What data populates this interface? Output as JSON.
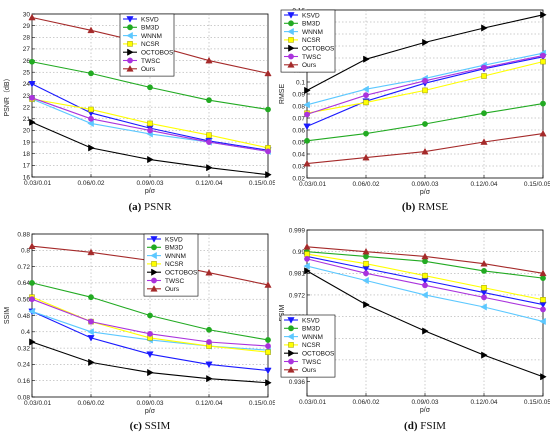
{
  "chart_data": [
    {
      "id": "psnr",
      "type": "line",
      "caption_letter": "(a)",
      "caption_text": "PSNR",
      "ylabel": "PSNR（dB）",
      "xlabel": "p/σ",
      "categories": [
        "0.03/0.01",
        "0.06/0.02",
        "0.09/0.03",
        "0.12/0.04",
        "0.15/0.05"
      ],
      "ylim": [
        16,
        30
      ],
      "yticks": [
        "16",
        "17",
        "18",
        "19",
        "20",
        "21",
        "22",
        "23",
        "24",
        "25",
        "26",
        "27",
        "28",
        "29",
        "30"
      ],
      "grid": true,
      "legend": "top-center",
      "series": [
        {
          "name": "KSVD",
          "color": "#1a1aff",
          "marker": "tri-down",
          "values": [
            24.0,
            21.5,
            20.2,
            19.1,
            18.3
          ]
        },
        {
          "name": "BM3D",
          "color": "#22aa22",
          "marker": "circle",
          "values": [
            25.9,
            24.9,
            23.7,
            22.6,
            21.8
          ]
        },
        {
          "name": "WNNM",
          "color": "#5cc8ff",
          "marker": "tri-left",
          "values": [
            22.7,
            20.6,
            19.7,
            19.0,
            18.2
          ]
        },
        {
          "name": "NCSR",
          "color": "#ffff00",
          "marker": "square",
          "values": [
            22.7,
            21.8,
            20.6,
            19.6,
            18.5
          ]
        },
        {
          "name": "OCTOBOS",
          "color": "#000000",
          "marker": "tri-right",
          "values": [
            20.7,
            18.5,
            17.5,
            16.8,
            16.2
          ]
        },
        {
          "name": "TWSC",
          "color": "#aa33dd",
          "marker": "circle",
          "values": [
            22.8,
            21.0,
            20.0,
            19.0,
            18.2
          ]
        },
        {
          "name": "Ours",
          "color": "#a52a2a",
          "marker": "tri-up",
          "values": [
            29.7,
            28.6,
            27.4,
            26.0,
            24.9
          ]
        }
      ]
    },
    {
      "id": "rmse",
      "type": "line",
      "caption_letter": "(b)",
      "caption_text": "RMSE",
      "ylabel": "RMSE",
      "xlabel": "p/σ",
      "categories": [
        "0.03/0.01",
        "0.06/0.02",
        "0.09/0.03",
        "0.12/0.04",
        "0.15/0.05"
      ],
      "ylim": [
        0.02,
        0.16
      ],
      "yticks": [
        "0.02",
        "0.03",
        "0.04",
        "0.05",
        "0.06",
        "0.07",
        "0.08",
        "0.09",
        "0.1",
        "0.11",
        "0.12",
        "0.13",
        "0.14",
        "0.15",
        "0.16"
      ],
      "grid": true,
      "legend": "top-left",
      "series": [
        {
          "name": "KSVD",
          "color": "#1a1aff",
          "marker": "tri-down",
          "values": [
            0.063,
            0.084,
            0.099,
            0.111,
            0.121
          ]
        },
        {
          "name": "BM3D",
          "color": "#22aa22",
          "marker": "circle",
          "values": [
            0.051,
            0.057,
            0.065,
            0.074,
            0.082
          ]
        },
        {
          "name": "WNNM",
          "color": "#5cc8ff",
          "marker": "tri-left",
          "values": [
            0.081,
            0.094,
            0.103,
            0.114,
            0.124
          ]
        },
        {
          "name": "NCSR",
          "color": "#ffff00",
          "marker": "square",
          "values": [
            0.074,
            0.083,
            0.093,
            0.105,
            0.117
          ]
        },
        {
          "name": "OCTOBOS",
          "color": "#000000",
          "marker": "tri-right",
          "values": [
            0.093,
            0.119,
            0.133,
            0.145,
            0.156
          ]
        },
        {
          "name": "TWSC",
          "color": "#aa33dd",
          "marker": "circle",
          "values": [
            0.073,
            0.089,
            0.101,
            0.112,
            0.122
          ]
        },
        {
          "name": "Ours",
          "color": "#a52a2a",
          "marker": "tri-up",
          "values": [
            0.032,
            0.037,
            0.042,
            0.05,
            0.057
          ]
        }
      ]
    },
    {
      "id": "ssim",
      "type": "line",
      "caption_letter": "(c)",
      "caption_text": "SSIM",
      "ylabel": "SSIM",
      "xlabel": "p/σ",
      "categories": [
        "0.03/0.01",
        "0.06/0.02",
        "0.09/0.03",
        "0.12/0.04",
        "0.15/0.05"
      ],
      "ylim": [
        0.08,
        0.88
      ],
      "yticks": [
        "0.08",
        "0.16",
        "0.24",
        "0.32",
        "0.4",
        "0.48",
        "0.56",
        "0.64",
        "0.72",
        "0.8",
        "0.88"
      ],
      "grid": true,
      "legend": "top-right",
      "series": [
        {
          "name": "KSVD",
          "color": "#1a1aff",
          "marker": "tri-down",
          "values": [
            0.5,
            0.37,
            0.29,
            0.24,
            0.21
          ]
        },
        {
          "name": "BM3D",
          "color": "#22aa22",
          "marker": "circle",
          "values": [
            0.64,
            0.57,
            0.48,
            0.41,
            0.36
          ]
        },
        {
          "name": "WNNM",
          "color": "#5cc8ff",
          "marker": "tri-left",
          "values": [
            0.5,
            0.4,
            0.36,
            0.33,
            0.31
          ]
        },
        {
          "name": "NCSR",
          "color": "#ffff00",
          "marker": "square",
          "values": [
            0.57,
            0.45,
            0.37,
            0.33,
            0.3
          ]
        },
        {
          "name": "OCTOBOS",
          "color": "#000000",
          "marker": "tri-right",
          "values": [
            0.35,
            0.25,
            0.2,
            0.17,
            0.15
          ]
        },
        {
          "name": "TWSC",
          "color": "#aa33dd",
          "marker": "circle",
          "values": [
            0.56,
            0.45,
            0.39,
            0.35,
            0.33
          ]
        },
        {
          "name": "Ours",
          "color": "#a52a2a",
          "marker": "tri-up",
          "values": [
            0.82,
            0.79,
            0.75,
            0.69,
            0.63
          ]
        }
      ]
    },
    {
      "id": "fsim",
      "type": "line",
      "caption_letter": "(d)",
      "caption_text": "FSIM",
      "ylabel": "FSIM",
      "xlabel": "p/σ",
      "categories": [
        "0.03/0.01",
        "0.06/0.02",
        "0.09/0.03",
        "0.12/0.04",
        "0.15/0.05"
      ],
      "ylim": [
        0.93,
        0.999
      ],
      "yticks": [
        "0.936",
        "0.945",
        "0.954",
        "0.963",
        "0.972",
        "0.981",
        "0.99",
        "0.999"
      ],
      "grid": true,
      "legend": "bottom-left",
      "series": [
        {
          "name": "KSVD",
          "color": "#1a1aff",
          "marker": "tri-down",
          "values": [
            0.988,
            0.983,
            0.978,
            0.973,
            0.968
          ]
        },
        {
          "name": "BM3D",
          "color": "#22aa22",
          "marker": "circle",
          "values": [
            0.99,
            0.988,
            0.986,
            0.982,
            0.979
          ]
        },
        {
          "name": "WNNM",
          "color": "#5cc8ff",
          "marker": "tri-left",
          "values": [
            0.984,
            0.978,
            0.972,
            0.967,
            0.961
          ]
        },
        {
          "name": "NCSR",
          "color": "#ffff00",
          "marker": "square",
          "values": [
            0.989,
            0.985,
            0.98,
            0.975,
            0.97
          ]
        },
        {
          "name": "OCTOBOS",
          "color": "#000000",
          "marker": "tri-right",
          "values": [
            0.982,
            0.968,
            0.957,
            0.947,
            0.938
          ]
        },
        {
          "name": "TWSC",
          "color": "#aa33dd",
          "marker": "circle",
          "values": [
            0.987,
            0.981,
            0.976,
            0.971,
            0.966
          ]
        },
        {
          "name": "Ours",
          "color": "#a52a2a",
          "marker": "tri-up",
          "values": [
            0.992,
            0.99,
            0.988,
            0.985,
            0.981
          ]
        }
      ]
    }
  ]
}
